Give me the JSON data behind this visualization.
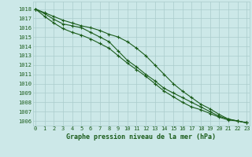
{
  "title": "Graphe pression niveau de la mer (hPa)",
  "x": [
    0,
    1,
    2,
    3,
    4,
    5,
    6,
    7,
    8,
    9,
    10,
    11,
    12,
    13,
    14,
    15,
    16,
    17,
    18,
    19,
    20,
    21,
    22,
    23
  ],
  "ylim": [
    1005.5,
    1018.8
  ],
  "xlim": [
    -0.3,
    23.3
  ],
  "yticks": [
    1006,
    1007,
    1008,
    1009,
    1010,
    1011,
    1012,
    1013,
    1014,
    1015,
    1016,
    1017,
    1018
  ],
  "xticks": [
    0,
    1,
    2,
    3,
    4,
    5,
    6,
    7,
    8,
    9,
    10,
    11,
    12,
    13,
    14,
    15,
    16,
    17,
    18,
    19,
    20,
    21,
    22,
    23
  ],
  "bg_color": "#cce8e8",
  "grid_color": "#aacccc",
  "line_color": "#1a5c1a",
  "line1": [
    1018.0,
    1017.6,
    1017.2,
    1016.8,
    1016.5,
    1016.2,
    1016.0,
    1015.7,
    1015.3,
    1015.0,
    1014.5,
    1013.8,
    1013.0,
    1012.0,
    1011.0,
    1010.0,
    1009.2,
    1008.5,
    1007.8,
    1007.3,
    1006.7,
    1006.2,
    1006.0,
    1005.8
  ],
  "line2": [
    1018.0,
    1017.5,
    1016.9,
    1016.4,
    1016.2,
    1016.0,
    1015.5,
    1015.0,
    1014.5,
    1013.5,
    1012.5,
    1011.8,
    1011.0,
    1010.3,
    1009.5,
    1009.0,
    1008.5,
    1008.0,
    1007.5,
    1007.0,
    1006.5,
    1006.2,
    1006.0,
    1005.8
  ],
  "line3": [
    1018.0,
    1017.2,
    1016.5,
    1015.9,
    1015.5,
    1015.2,
    1014.8,
    1014.3,
    1013.8,
    1013.0,
    1012.2,
    1011.5,
    1010.8,
    1010.0,
    1009.2,
    1008.6,
    1008.0,
    1007.5,
    1007.2,
    1006.8,
    1006.4,
    1006.1,
    1006.0,
    1005.8
  ],
  "marker": "+",
  "marker_size": 3.5,
  "linewidth": 0.8,
  "tick_fontsize": 5.0,
  "label_fontsize": 6.0
}
